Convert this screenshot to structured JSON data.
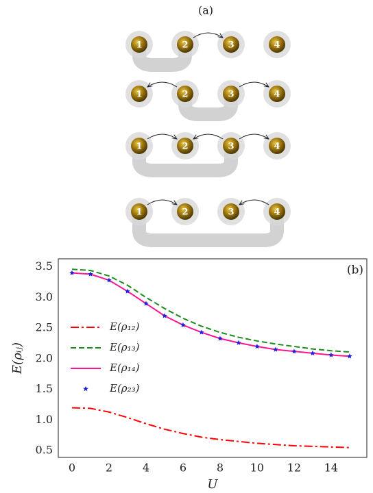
{
  "diagram": {
    "label": "(a)",
    "rows": [
      [
        "1",
        "2",
        "3",
        "4"
      ],
      [
        "1",
        "2",
        "3",
        "4"
      ],
      [
        "1",
        "2",
        "3",
        "4"
      ],
      [
        "1",
        "2",
        "3",
        "4"
      ]
    ]
  },
  "chart_data": {
    "type": "line",
    "panel_label": "(b)",
    "x_label": "U",
    "y_label": "E(ρᵢⱼ)",
    "x": [
      0,
      1,
      2,
      3,
      4,
      5,
      6,
      7,
      8,
      9,
      10,
      11,
      12,
      13,
      14,
      15
    ],
    "series": [
      {
        "name": "E(ρ₁₂)",
        "color": "#ff0000",
        "linestyle": "-.",
        "values": [
          1.2,
          1.19,
          1.13,
          1.04,
          0.94,
          0.85,
          0.78,
          0.72,
          0.68,
          0.65,
          0.62,
          0.6,
          0.58,
          0.57,
          0.56,
          0.55
        ]
      },
      {
        "name": "E(ρ₁₃)",
        "color": "#1a8a1a",
        "linestyle": "--",
        "values": [
          3.46,
          3.44,
          3.35,
          3.2,
          3.0,
          2.82,
          2.66,
          2.53,
          2.43,
          2.35,
          2.29,
          2.24,
          2.2,
          2.16,
          2.13,
          2.11
        ]
      },
      {
        "name": "E(ρ₁₄)",
        "color": "#ff1493",
        "linestyle": "-",
        "values": [
          3.4,
          3.38,
          3.28,
          3.1,
          2.9,
          2.7,
          2.55,
          2.43,
          2.33,
          2.26,
          2.2,
          2.15,
          2.12,
          2.09,
          2.06,
          2.04
        ]
      },
      {
        "name": "E(ρ₂₃)",
        "color": "#1f1fdd",
        "linestyle": "none",
        "marker": "*",
        "values": [
          3.4,
          3.38,
          3.28,
          3.1,
          2.9,
          2.7,
          2.55,
          2.43,
          2.33,
          2.26,
          2.2,
          2.15,
          2.12,
          2.09,
          2.06,
          2.04
        ]
      }
    ],
    "xlim": [
      -0.74,
      15.93
    ],
    "ylim": [
      0.39,
      3.63
    ],
    "xticks": [
      0,
      2,
      4,
      6,
      8,
      10,
      12,
      14
    ],
    "yticks": [
      0.5,
      {
        "value": 1,
        "label": "1.0"
      },
      1.5,
      {
        "value": 2,
        "label": "2.0"
      },
      2.5,
      {
        "value": 3,
        "label": "3.0"
      },
      3.5
    ],
    "legend": "center left",
    "grid": false
  }
}
